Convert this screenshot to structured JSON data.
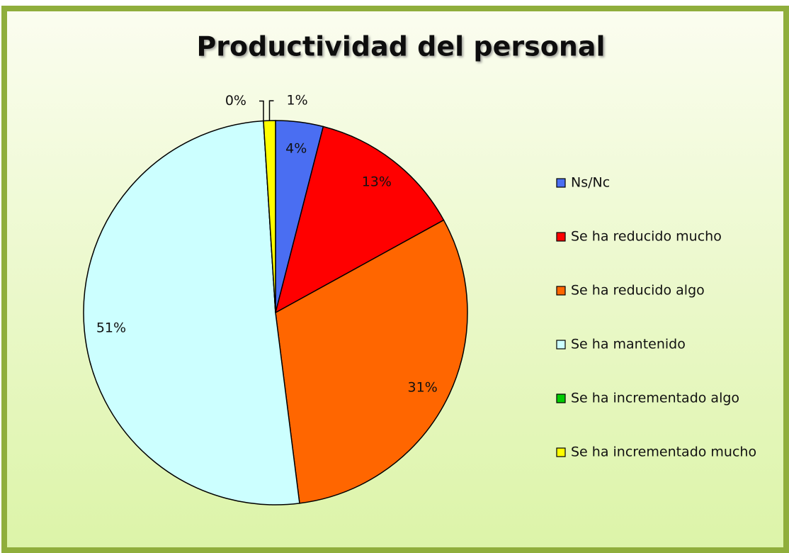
{
  "chart_data": {
    "type": "pie",
    "title": "Productividad del personal",
    "categories": [
      "Ns/Nc",
      "Se ha reducido mucho",
      "Se ha reducido algo",
      "Se ha mantenido",
      "Se ha incrementado algo",
      "Se ha incrementado mucho"
    ],
    "values": [
      4,
      13,
      31,
      51,
      0,
      1
    ],
    "value_labels": [
      "4%",
      "13%",
      "31%",
      "51%",
      "0%",
      "1%"
    ],
    "colors": [
      "#4a6ef2",
      "#ff0000",
      "#ff6600",
      "#ccffff",
      "#00cc00",
      "#ffff00"
    ],
    "legend": "right"
  }
}
